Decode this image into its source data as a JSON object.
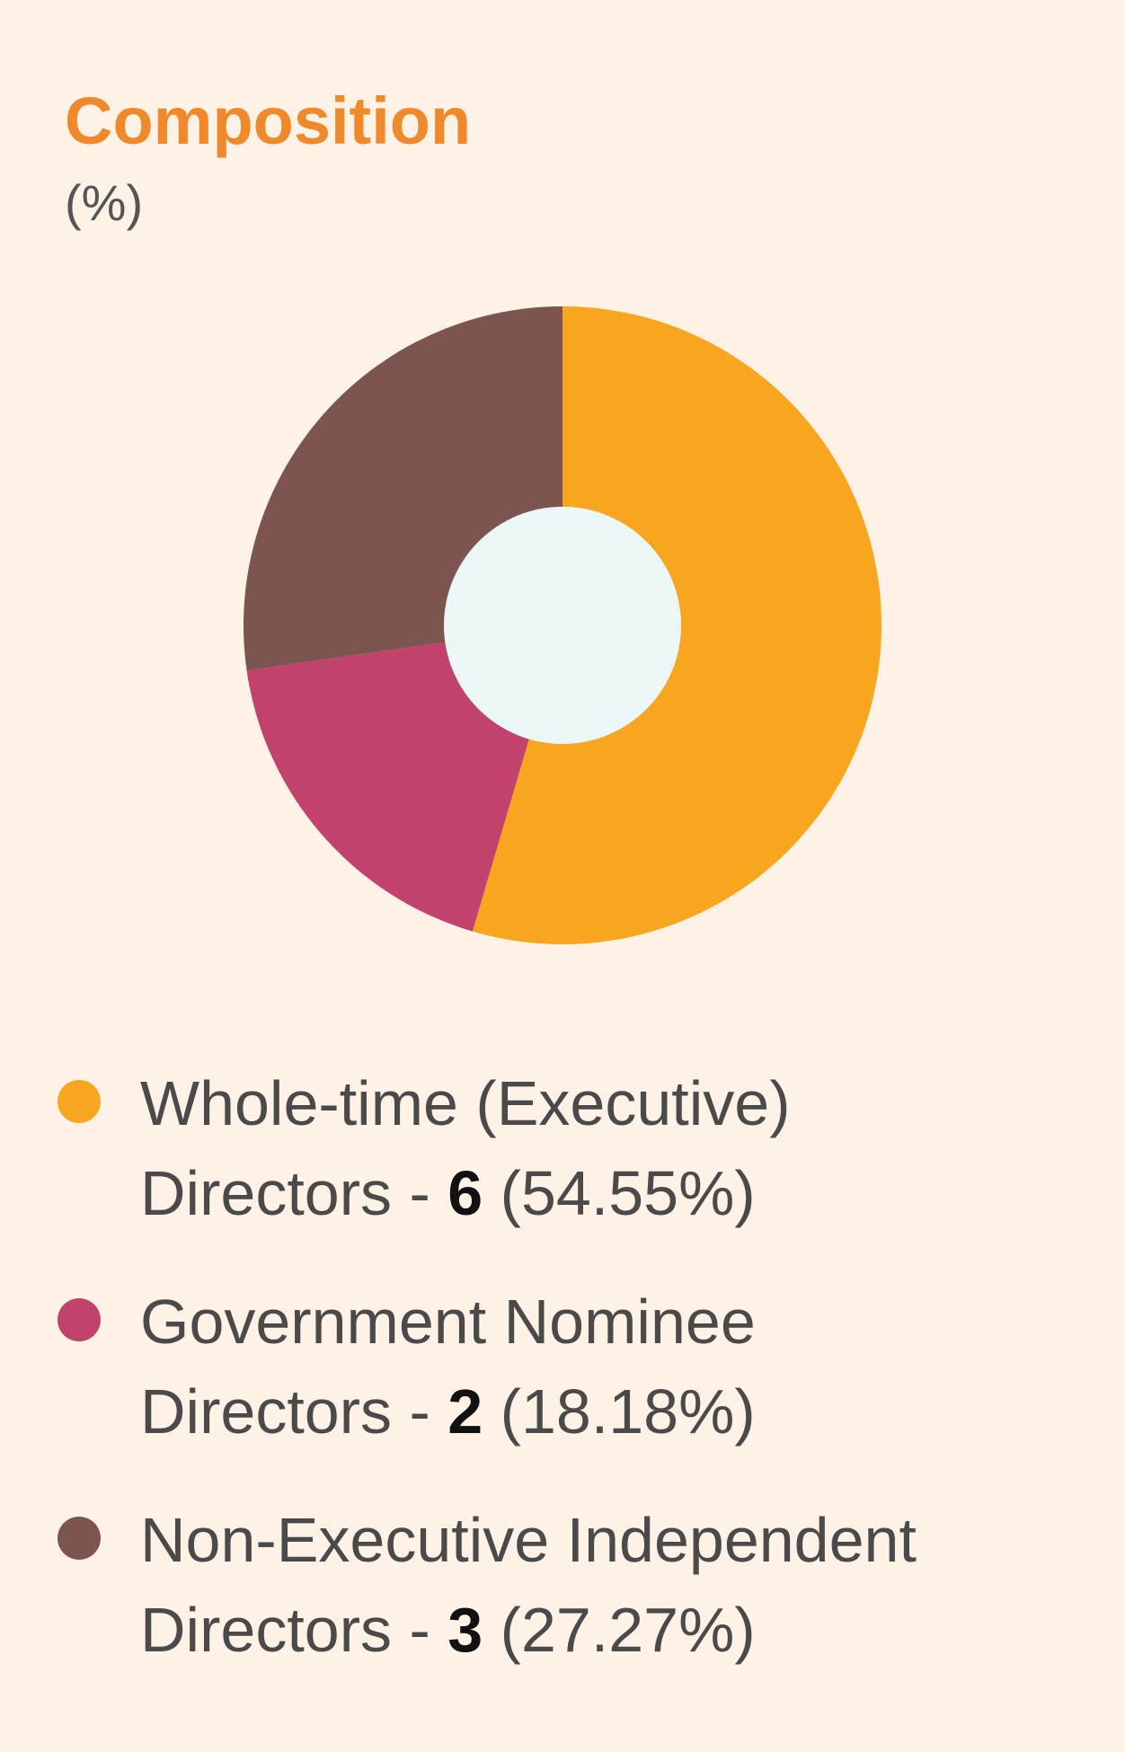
{
  "header": {
    "title": "Composition",
    "subtitle": "(%)"
  },
  "colors": {
    "background": "#fef1e6",
    "title": "#f0892b",
    "center": "#eaf7f6"
  },
  "chart_data": {
    "type": "pie",
    "title": "Composition",
    "subtitle": "(%)",
    "donut": true,
    "legend_position": "bottom",
    "slices": [
      {
        "line1": "Whole-time (Executive)",
        "line2": "Directors - ",
        "count": "6",
        "pct_text": " (54.55%)",
        "value": 54.55,
        "color": "#f8a61f"
      },
      {
        "line1": "Government Nominee",
        "line2": "Directors - ",
        "count": "2",
        "pct_text": " (18.18%)",
        "value": 18.18,
        "color": "#c1426c"
      },
      {
        "line1": "Non-Executive Independent",
        "line2": "Directors - ",
        "count": "3",
        "pct_text": " (27.27%)",
        "value": 27.27,
        "color": "#7c5550"
      }
    ]
  }
}
